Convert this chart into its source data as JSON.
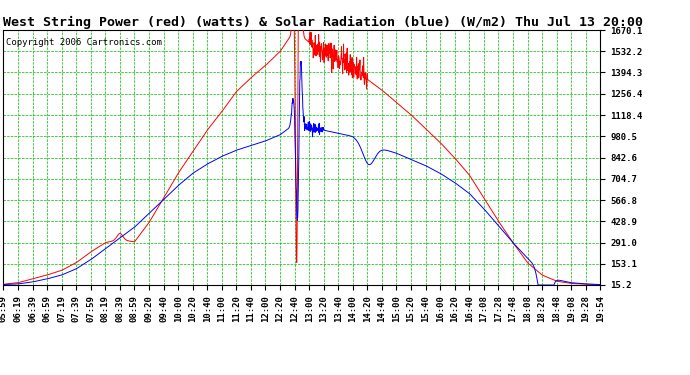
{
  "title": "West String Power (red) (watts) & Solar Radiation (blue) (W/m2) Thu Jul 13 20:00",
  "copyright": "Copyright 2006 Cartronics.com",
  "background_color": "#ffffff",
  "plot_bg_color": "#ffffff",
  "grid_color": "#00bb00",
  "y_ticks": [
    15.2,
    153.1,
    291.0,
    428.9,
    566.8,
    704.7,
    842.6,
    980.5,
    1118.4,
    1256.4,
    1394.3,
    1532.2,
    1670.1
  ],
  "x_labels": [
    "05:59",
    "06:19",
    "06:39",
    "06:59",
    "07:19",
    "07:39",
    "07:59",
    "08:19",
    "08:39",
    "08:59",
    "09:20",
    "09:40",
    "10:00",
    "10:20",
    "10:40",
    "11:00",
    "11:20",
    "11:40",
    "12:00",
    "12:20",
    "12:40",
    "13:00",
    "13:20",
    "13:40",
    "14:00",
    "14:20",
    "14:40",
    "15:00",
    "15:20",
    "15:40",
    "16:00",
    "16:20",
    "16:40",
    "17:08",
    "17:28",
    "17:48",
    "18:08",
    "18:28",
    "18:48",
    "19:08",
    "19:28",
    "19:54"
  ],
  "ymin": 15.2,
  "ymax": 1670.1,
  "red_line_color": "#ff0000",
  "blue_line_color": "#0000ff",
  "title_fontsize": 9.5,
  "copyright_fontsize": 6.5,
  "tick_fontsize": 6.5,
  "red_data": [
    20,
    30,
    55,
    80,
    110,
    160,
    230,
    290,
    310,
    295,
    420,
    580,
    740,
    880,
    1020,
    1140,
    1270,
    1360,
    1440,
    1530,
    1670,
    1590,
    1540,
    1490,
    1430,
    1350,
    1280,
    1200,
    1120,
    1030,
    940,
    840,
    730,
    580,
    430,
    290,
    160,
    80,
    40,
    25,
    20,
    18
  ],
  "blue_data": [
    18,
    22,
    35,
    55,
    80,
    120,
    180,
    250,
    320,
    390,
    480,
    570,
    660,
    740,
    800,
    850,
    890,
    920,
    950,
    990,
    1060,
    1040,
    1020,
    1000,
    980,
    930,
    900,
    870,
    830,
    790,
    740,
    680,
    610,
    510,
    400,
    290,
    190,
    100,
    50,
    30,
    22,
    18
  ]
}
